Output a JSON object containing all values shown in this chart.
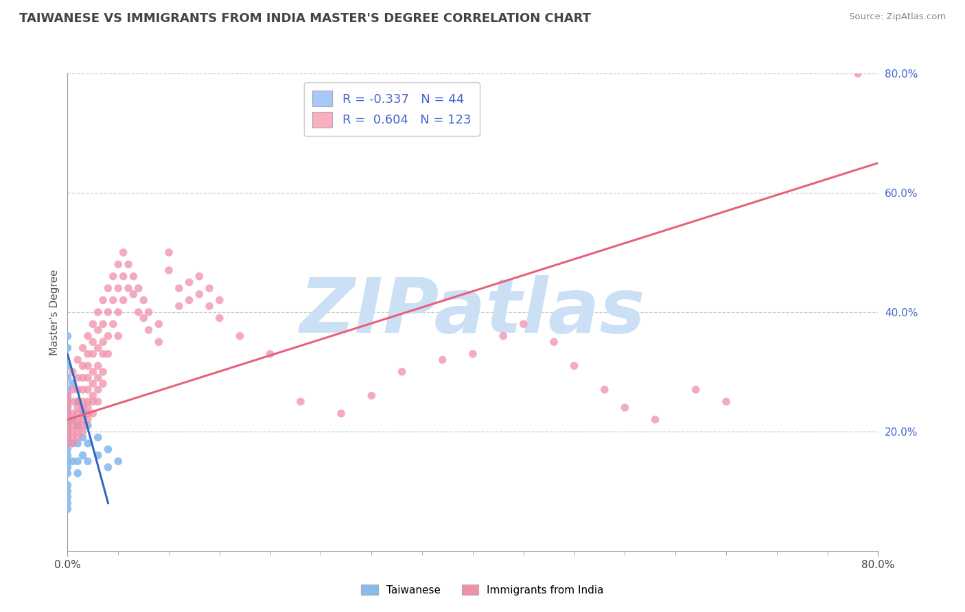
{
  "title": "TAIWANESE VS IMMIGRANTS FROM INDIA MASTER'S DEGREE CORRELATION CHART",
  "source": "Source: ZipAtlas.com",
  "ylabel": "Master's Degree",
  "watermark": "ZIPatlas",
  "xlim": [
    0.0,
    0.8
  ],
  "ylim": [
    0.0,
    0.8
  ],
  "xtick_labels_shown": [
    "0.0%",
    "80.0%"
  ],
  "xtick_labels_positions": [
    0.0,
    0.8
  ],
  "xticks_minor": [
    0.0,
    0.05,
    0.1,
    0.15,
    0.2,
    0.25,
    0.3,
    0.35,
    0.4,
    0.45,
    0.5,
    0.55,
    0.6,
    0.65,
    0.7,
    0.75,
    0.8
  ],
  "yticks_right": [
    0.2,
    0.4,
    0.6,
    0.8
  ],
  "legend_R_N": [
    {
      "R_str": "-0.337",
      "N": 44,
      "color": "#a8c8f8"
    },
    {
      "R_str": "0.604",
      "N": 123,
      "color": "#f8b0c0"
    }
  ],
  "blue_line_color": "#3366bb",
  "pink_line_color": "#e8607a",
  "dot_color_taiwanese": "#88bbee",
  "dot_color_india": "#f090aa",
  "grid_color": "#cccccc",
  "background_color": "#ffffff",
  "title_color": "#444444",
  "watermark_color": "#cce0f5",
  "axis_color": "#999999",
  "label_color_right": "#4466cc",
  "taiwanese_data": [
    [
      0.0,
      0.36
    ],
    [
      0.0,
      0.34
    ],
    [
      0.0,
      0.31
    ],
    [
      0.0,
      0.29
    ],
    [
      0.0,
      0.27
    ],
    [
      0.0,
      0.26
    ],
    [
      0.0,
      0.25
    ],
    [
      0.0,
      0.24
    ],
    [
      0.0,
      0.23
    ],
    [
      0.0,
      0.22
    ],
    [
      0.0,
      0.21
    ],
    [
      0.0,
      0.2
    ],
    [
      0.0,
      0.19
    ],
    [
      0.0,
      0.18
    ],
    [
      0.0,
      0.17
    ],
    [
      0.0,
      0.16
    ],
    [
      0.0,
      0.15
    ],
    [
      0.0,
      0.14
    ],
    [
      0.0,
      0.13
    ],
    [
      0.0,
      0.11
    ],
    [
      0.0,
      0.1
    ],
    [
      0.0,
      0.09
    ],
    [
      0.0,
      0.08
    ],
    [
      0.0,
      0.07
    ],
    [
      0.005,
      0.28
    ],
    [
      0.005,
      0.22
    ],
    [
      0.005,
      0.18
    ],
    [
      0.005,
      0.15
    ],
    [
      0.01,
      0.25
    ],
    [
      0.01,
      0.21
    ],
    [
      0.01,
      0.18
    ],
    [
      0.01,
      0.15
    ],
    [
      0.01,
      0.13
    ],
    [
      0.015,
      0.23
    ],
    [
      0.015,
      0.19
    ],
    [
      0.015,
      0.16
    ],
    [
      0.02,
      0.21
    ],
    [
      0.02,
      0.18
    ],
    [
      0.02,
      0.15
    ],
    [
      0.03,
      0.19
    ],
    [
      0.03,
      0.16
    ],
    [
      0.04,
      0.17
    ],
    [
      0.04,
      0.14
    ],
    [
      0.05,
      0.15
    ]
  ],
  "india_data": [
    [
      0.0,
      0.26
    ],
    [
      0.0,
      0.25
    ],
    [
      0.0,
      0.24
    ],
    [
      0.0,
      0.23
    ],
    [
      0.0,
      0.22
    ],
    [
      0.0,
      0.21
    ],
    [
      0.0,
      0.2
    ],
    [
      0.0,
      0.19
    ],
    [
      0.0,
      0.18
    ],
    [
      0.005,
      0.3
    ],
    [
      0.005,
      0.27
    ],
    [
      0.005,
      0.25
    ],
    [
      0.005,
      0.23
    ],
    [
      0.005,
      0.22
    ],
    [
      0.005,
      0.21
    ],
    [
      0.005,
      0.2
    ],
    [
      0.005,
      0.19
    ],
    [
      0.005,
      0.18
    ],
    [
      0.01,
      0.32
    ],
    [
      0.01,
      0.29
    ],
    [
      0.01,
      0.27
    ],
    [
      0.01,
      0.25
    ],
    [
      0.01,
      0.24
    ],
    [
      0.01,
      0.23
    ],
    [
      0.01,
      0.22
    ],
    [
      0.01,
      0.21
    ],
    [
      0.01,
      0.2
    ],
    [
      0.01,
      0.19
    ],
    [
      0.015,
      0.34
    ],
    [
      0.015,
      0.31
    ],
    [
      0.015,
      0.29
    ],
    [
      0.015,
      0.27
    ],
    [
      0.015,
      0.25
    ],
    [
      0.015,
      0.24
    ],
    [
      0.015,
      0.22
    ],
    [
      0.015,
      0.21
    ],
    [
      0.015,
      0.2
    ],
    [
      0.02,
      0.36
    ],
    [
      0.02,
      0.33
    ],
    [
      0.02,
      0.31
    ],
    [
      0.02,
      0.29
    ],
    [
      0.02,
      0.27
    ],
    [
      0.02,
      0.25
    ],
    [
      0.02,
      0.24
    ],
    [
      0.02,
      0.23
    ],
    [
      0.02,
      0.22
    ],
    [
      0.025,
      0.38
    ],
    [
      0.025,
      0.35
    ],
    [
      0.025,
      0.33
    ],
    [
      0.025,
      0.3
    ],
    [
      0.025,
      0.28
    ],
    [
      0.025,
      0.26
    ],
    [
      0.025,
      0.25
    ],
    [
      0.025,
      0.23
    ],
    [
      0.03,
      0.4
    ],
    [
      0.03,
      0.37
    ],
    [
      0.03,
      0.34
    ],
    [
      0.03,
      0.31
    ],
    [
      0.03,
      0.29
    ],
    [
      0.03,
      0.27
    ],
    [
      0.03,
      0.25
    ],
    [
      0.035,
      0.42
    ],
    [
      0.035,
      0.38
    ],
    [
      0.035,
      0.35
    ],
    [
      0.035,
      0.33
    ],
    [
      0.035,
      0.3
    ],
    [
      0.035,
      0.28
    ],
    [
      0.04,
      0.44
    ],
    [
      0.04,
      0.4
    ],
    [
      0.04,
      0.36
    ],
    [
      0.04,
      0.33
    ],
    [
      0.045,
      0.46
    ],
    [
      0.045,
      0.42
    ],
    [
      0.045,
      0.38
    ],
    [
      0.05,
      0.48
    ],
    [
      0.05,
      0.44
    ],
    [
      0.05,
      0.4
    ],
    [
      0.05,
      0.36
    ],
    [
      0.055,
      0.5
    ],
    [
      0.055,
      0.46
    ],
    [
      0.055,
      0.42
    ],
    [
      0.06,
      0.48
    ],
    [
      0.06,
      0.44
    ],
    [
      0.065,
      0.46
    ],
    [
      0.065,
      0.43
    ],
    [
      0.07,
      0.44
    ],
    [
      0.07,
      0.4
    ],
    [
      0.075,
      0.42
    ],
    [
      0.075,
      0.39
    ],
    [
      0.08,
      0.4
    ],
    [
      0.08,
      0.37
    ],
    [
      0.09,
      0.38
    ],
    [
      0.09,
      0.35
    ],
    [
      0.1,
      0.5
    ],
    [
      0.1,
      0.47
    ],
    [
      0.11,
      0.44
    ],
    [
      0.11,
      0.41
    ],
    [
      0.12,
      0.45
    ],
    [
      0.12,
      0.42
    ],
    [
      0.13,
      0.46
    ],
    [
      0.13,
      0.43
    ],
    [
      0.14,
      0.44
    ],
    [
      0.14,
      0.41
    ],
    [
      0.15,
      0.42
    ],
    [
      0.15,
      0.39
    ],
    [
      0.17,
      0.36
    ],
    [
      0.2,
      0.33
    ],
    [
      0.23,
      0.25
    ],
    [
      0.27,
      0.23
    ],
    [
      0.3,
      0.26
    ],
    [
      0.33,
      0.3
    ],
    [
      0.37,
      0.32
    ],
    [
      0.4,
      0.33
    ],
    [
      0.43,
      0.36
    ],
    [
      0.45,
      0.38
    ],
    [
      0.48,
      0.35
    ],
    [
      0.5,
      0.31
    ],
    [
      0.53,
      0.27
    ],
    [
      0.55,
      0.24
    ],
    [
      0.58,
      0.22
    ],
    [
      0.62,
      0.27
    ],
    [
      0.65,
      0.25
    ],
    [
      0.78,
      0.8
    ]
  ],
  "blue_line": {
    "x0": 0.0,
    "x1": 0.04,
    "y0": 0.33,
    "y1": 0.08
  },
  "pink_line": {
    "x0": 0.0,
    "x1": 0.8,
    "y0": 0.22,
    "y1": 0.65
  }
}
